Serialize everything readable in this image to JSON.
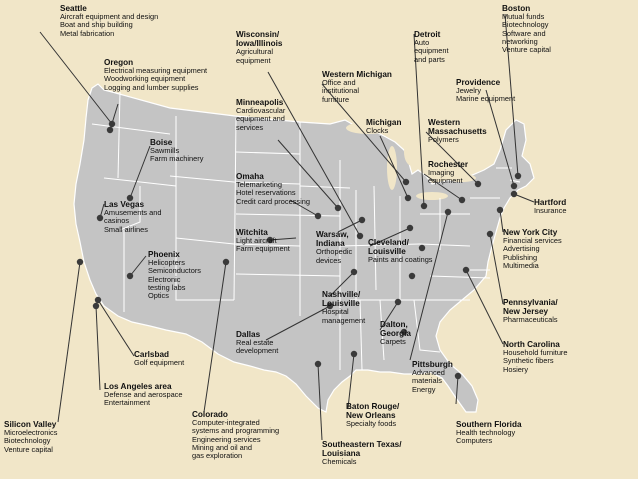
{
  "regions": {
    "seattle": {
      "title": "Seattle",
      "lines": [
        "Aircraft equipment and design",
        "Boat and ship building",
        "Metal fabrication"
      ]
    },
    "oregon": {
      "title": "Oregon",
      "lines": [
        "Electrical measuring equipment",
        "Woodworking equipment",
        "Logging and lumber supplies"
      ]
    },
    "boise": {
      "title": "Boise",
      "lines": [
        "Sawmills",
        "Farm machinery"
      ]
    },
    "las_vegas": {
      "title": "Las Vegas",
      "lines": [
        "Amusements and",
        "casinos",
        "Small airlines"
      ]
    },
    "phoenix": {
      "title": "Phoenix",
      "lines": [
        "Helicopters",
        "Semiconductors",
        "Electronic",
        "testing labs",
        "Optics"
      ]
    },
    "carlsbad": {
      "title": "Carlsbad",
      "lines": [
        "Golf equipment"
      ]
    },
    "los_angeles": {
      "title": "Los Angeles area",
      "lines": [
        "Defense and aerospace",
        "Entertainment"
      ]
    },
    "silicon_valley": {
      "title": "Silicon Valley",
      "lines": [
        "Microelectronics",
        "Biotechnology",
        "Venture capital"
      ]
    },
    "colorado": {
      "title": "Colorado",
      "lines": [
        "Computer-integrated",
        "systems and programming",
        "Engineering services",
        "Mining and oil and",
        "gas exploration"
      ]
    },
    "wisconsin": {
      "title": "Wisconsin/\nIowa/Illinois",
      "lines": [
        "Agricultural",
        "equipment"
      ]
    },
    "minneapolis": {
      "title": "Minneapolis",
      "lines": [
        "Cardiovascular",
        "equipment and",
        "services"
      ]
    },
    "omaha": {
      "title": "Omaha",
      "lines": [
        "Telemarketing",
        "Hotel reservations",
        "Credit card processing"
      ]
    },
    "witchita": {
      "title": "Witchita",
      "lines": [
        "Light aircraft",
        "Farm equipment"
      ]
    },
    "dallas": {
      "title": "Dallas",
      "lines": [
        "Real estate",
        "development"
      ]
    },
    "western_michigan": {
      "title": "Western Michigan",
      "lines": [
        "Office and",
        "institutional",
        "furniture"
      ]
    },
    "michigan": {
      "title": "Michigan",
      "lines": [
        "Clocks"
      ]
    },
    "warsaw": {
      "title": "Warsaw,\nIndiana",
      "lines": [
        "Orthopedic",
        "devices"
      ]
    },
    "cleveland": {
      "title": "Cleveland/\nLouisville",
      "lines": [
        "Paints and coatings"
      ]
    },
    "nashville": {
      "title": "Nashville/\nLouisville",
      "lines": [
        "Hospital",
        "management"
      ]
    },
    "dalton": {
      "title": "Dalton,\nGeorgia",
      "lines": [
        "Carpets"
      ]
    },
    "pittsburgh": {
      "title": "Pittsburgh",
      "lines": [
        "Advanced",
        "materials",
        "Energy"
      ]
    },
    "baton_rouge": {
      "title": "Baton Rouge/\nNew Orleans",
      "lines": [
        "Specialty foods"
      ]
    },
    "se_texas": {
      "title": "Southeastern Texas/\nLouisiana",
      "lines": [
        "Chemicals"
      ]
    },
    "south_florida": {
      "title": "Southern Florida",
      "lines": [
        "Health technology",
        "Computers"
      ]
    },
    "detroit": {
      "title": "Detroit",
      "lines": [
        "Auto",
        "equipment",
        "and parts"
      ]
    },
    "western_mass": {
      "title": "Western\nMassachusetts",
      "lines": [
        "Polymers"
      ]
    },
    "rochester": {
      "title": "Rochester",
      "lines": [
        "Imaging",
        "equipment"
      ]
    },
    "providence": {
      "title": "Providence",
      "lines": [
        "Jewelry",
        "Marine equipment"
      ]
    },
    "boston": {
      "title": "Boston",
      "lines": [
        "Mutual funds",
        "Biotechnology",
        "Software and",
        "networking",
        "Venture capital"
      ]
    },
    "hartford": {
      "title": "Hartford",
      "lines": [
        "Insurance"
      ]
    },
    "new_york": {
      "title": "New York City",
      "lines": [
        "Financial services",
        "Advertising",
        "Publishing",
        "Multimedia"
      ]
    },
    "pennsylvania": {
      "title": "Pennsylvania/\nNew Jersey",
      "lines": [
        "Pharmaceuticals"
      ]
    },
    "north_carolina": {
      "title": "North Carolina",
      "lines": [
        "Household furniture",
        "Synthetic fibers",
        "Hosiery"
      ]
    }
  },
  "colors": {
    "background": "#f1e6c8",
    "land": "#c4c4c4",
    "borders": "#ffffff",
    "dots": "#3a3a3a",
    "leaders": "#333333"
  }
}
